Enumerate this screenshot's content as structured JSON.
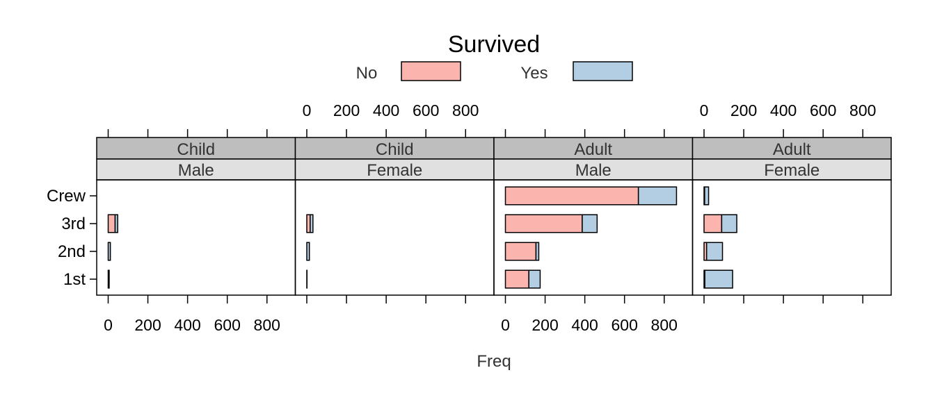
{
  "chart_data": {
    "type": "bar",
    "orientation": "horizontal",
    "stacked": true,
    "title": "Survived",
    "xlabel": "Freq",
    "ylabel": "",
    "xlim": [
      0,
      885
    ],
    "x_ticks": [
      0,
      200,
      400,
      600,
      800
    ],
    "x_tick_labels": [
      "0",
      "200",
      "400",
      "600",
      "800"
    ],
    "categories": [
      "1st",
      "2nd",
      "3rd",
      "Crew"
    ],
    "legend": {
      "position": "top",
      "items": [
        {
          "name": "No",
          "color": "#fbb4ae"
        },
        {
          "name": "Yes",
          "color": "#b3cde3"
        }
      ]
    },
    "panels": [
      {
        "strip_top": "Child",
        "strip_bottom": "Male",
        "series": [
          {
            "name": "No",
            "values": [
              0,
              0,
              35,
              0
            ]
          },
          {
            "name": "Yes",
            "values": [
              5,
              11,
              13,
              0
            ]
          }
        ]
      },
      {
        "strip_top": "Child",
        "strip_bottom": "Female",
        "series": [
          {
            "name": "No",
            "values": [
              0,
              0,
              17,
              0
            ]
          },
          {
            "name": "Yes",
            "values": [
              1,
              13,
              14,
              0
            ]
          }
        ]
      },
      {
        "strip_top": "Adult",
        "strip_bottom": "Male",
        "series": [
          {
            "name": "No",
            "values": [
              118,
              154,
              387,
              670
            ]
          },
          {
            "name": "Yes",
            "values": [
              57,
              14,
              75,
              192
            ]
          }
        ]
      },
      {
        "strip_top": "Adult",
        "strip_bottom": "Female",
        "series": [
          {
            "name": "No",
            "values": [
              4,
              13,
              89,
              3
            ]
          },
          {
            "name": "Yes",
            "values": [
              140,
              80,
              76,
              20
            ]
          }
        ]
      }
    ],
    "top_axis_panels": [
      1,
      3
    ],
    "bottom_axis_panels": [
      0,
      2
    ],
    "grid": false
  }
}
